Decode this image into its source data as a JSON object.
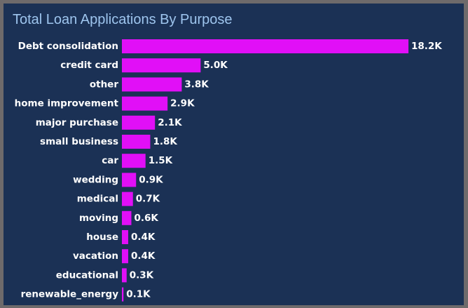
{
  "chart_data": {
    "type": "bar",
    "orientation": "horizontal",
    "title": "Total Loan Applications By Purpose",
    "categories": [
      "Debt consolidation",
      "credit card",
      "other",
      "home improvement",
      "major purchase",
      "small business",
      "car",
      "wedding",
      "medical",
      "moving",
      "house",
      "vacation",
      "educational",
      "renewable_energy"
    ],
    "values": [
      18200,
      5000,
      3800,
      2900,
      2100,
      1800,
      1500,
      900,
      700,
      600,
      400,
      400,
      300,
      100
    ],
    "data_labels": [
      "18.2K",
      "5.0K",
      "3.8K",
      "2.9K",
      "2.1K",
      "1.8K",
      "1.5K",
      "0.9K",
      "0.7K",
      "0.6K",
      "0.4K",
      "0.4K",
      "0.3K",
      "0.1K"
    ],
    "xlabel": "",
    "ylabel": "",
    "xlim": [
      0,
      18200
    ],
    "grid": false,
    "legend": "none",
    "colors": {
      "bar": "#e10ff7",
      "background": "#1b3155",
      "frame": "#6e6a6b",
      "title": "#9ec5ee",
      "labels": "#ffffff"
    }
  }
}
